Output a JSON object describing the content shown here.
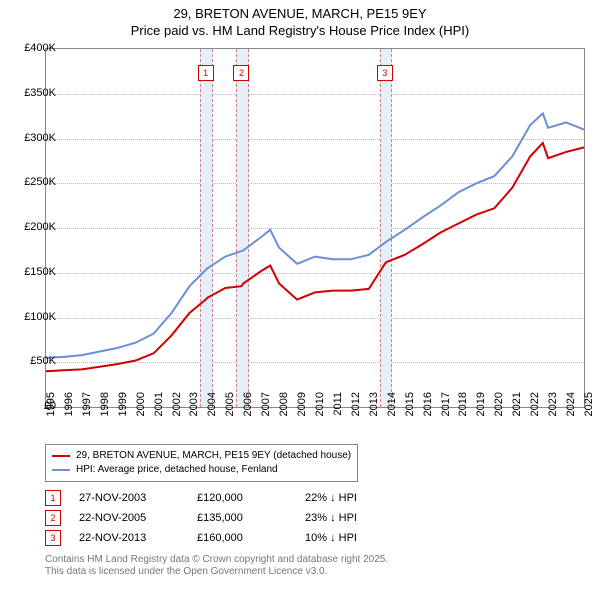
{
  "title": {
    "line1": "29, BRETON AVENUE, MARCH, PE15 9EY",
    "line2": "Price paid vs. HM Land Registry's House Price Index (HPI)",
    "fontsize": 13,
    "color": "#000000"
  },
  "chart": {
    "type": "line",
    "background_color": "#ffffff",
    "grid_color": "#bbbbbb",
    "border_color": "#888888",
    "x": {
      "min": 1995,
      "max": 2025,
      "ticks": [
        1995,
        1996,
        1997,
        1998,
        1999,
        2000,
        2001,
        2002,
        2003,
        2004,
        2005,
        2006,
        2007,
        2008,
        2009,
        2010,
        2011,
        2012,
        2013,
        2014,
        2015,
        2016,
        2017,
        2018,
        2019,
        2020,
        2021,
        2022,
        2023,
        2024,
        2025
      ],
      "label_fontsize": 11,
      "label_rotation": -90
    },
    "y": {
      "min": 0,
      "max": 400000,
      "ticks": [
        0,
        50000,
        100000,
        150000,
        200000,
        250000,
        300000,
        350000,
        400000
      ],
      "tick_labels": [
        "£0",
        "£50K",
        "£100K",
        "£150K",
        "£200K",
        "£250K",
        "£300K",
        "£350K",
        "£400K"
      ],
      "label_fontsize": 11
    },
    "markers": [
      {
        "n": "1",
        "year": 2003.9,
        "band_width_years": 0.6
      },
      {
        "n": "2",
        "year": 2005.9,
        "band_width_years": 0.6
      },
      {
        "n": "3",
        "year": 2013.9,
        "band_width_years": 0.6
      }
    ],
    "marker_band_color": "#e6eef9",
    "marker_border_color": "#d08080",
    "marker_label_border": "#d00000",
    "marker_label_color": "#d00000",
    "series": [
      {
        "name": "price_paid",
        "color": "#d00000",
        "line_width": 2,
        "years": [
          1995,
          1996,
          1997,
          1998,
          1999,
          2000,
          2001,
          2002,
          2003,
          2003.9,
          2004,
          2005,
          2005.9,
          2006,
          2007,
          2007.5,
          2008,
          2009,
          2010,
          2011,
          2012,
          2013,
          2013.9,
          2014,
          2015,
          2016,
          2017,
          2018,
          2019,
          2020,
          2021,
          2022,
          2022.7,
          2023,
          2024,
          2025
        ],
        "values": [
          40000,
          41000,
          42000,
          45000,
          48000,
          52000,
          60000,
          80000,
          105000,
          120000,
          122000,
          133000,
          135000,
          138000,
          152000,
          158000,
          138000,
          120000,
          128000,
          130000,
          130000,
          132000,
          160000,
          162000,
          170000,
          182000,
          195000,
          205000,
          215000,
          222000,
          245000,
          280000,
          295000,
          278000,
          285000,
          290000
        ]
      },
      {
        "name": "hpi",
        "color": "#6a8fd8",
        "line_width": 2,
        "years": [
          1995,
          1996,
          1997,
          1998,
          1999,
          2000,
          2001,
          2002,
          2003,
          2004,
          2005,
          2006,
          2007,
          2007.5,
          2008,
          2009,
          2010,
          2011,
          2012,
          2013,
          2014,
          2015,
          2016,
          2017,
          2018,
          2019,
          2020,
          2021,
          2022,
          2022.7,
          2023,
          2024,
          2025
        ],
        "values": [
          55000,
          56000,
          58000,
          62000,
          66000,
          72000,
          82000,
          105000,
          135000,
          155000,
          168000,
          175000,
          190000,
          198000,
          178000,
          160000,
          168000,
          165000,
          165000,
          170000,
          185000,
          198000,
          212000,
          225000,
          240000,
          250000,
          258000,
          280000,
          315000,
          328000,
          312000,
          318000,
          310000
        ]
      }
    ]
  },
  "legend": {
    "border_color": "#888888",
    "fontsize": 10,
    "items": [
      {
        "color": "#d00000",
        "label": "29, BRETON AVENUE, MARCH, PE15 9EY (detached house)"
      },
      {
        "color": "#6a8fd8",
        "label": "HPI: Average price, detached house, Fenland"
      }
    ]
  },
  "transactions": {
    "fontsize": 11,
    "marker_border": "#d00000",
    "marker_color": "#d00000",
    "rows": [
      {
        "n": "1",
        "date": "27-NOV-2003",
        "price": "£120,000",
        "delta": "22% ↓ HPI"
      },
      {
        "n": "2",
        "date": "22-NOV-2005",
        "price": "£135,000",
        "delta": "23% ↓ HPI"
      },
      {
        "n": "3",
        "date": "22-NOV-2013",
        "price": "£160,000",
        "delta": "10% ↓ HPI"
      }
    ]
  },
  "footer": {
    "line1": "Contains HM Land Registry data © Crown copyright and database right 2025.",
    "line2": "This data is licensed under the Open Government Licence v3.0.",
    "color": "#777777",
    "fontsize": 10
  }
}
